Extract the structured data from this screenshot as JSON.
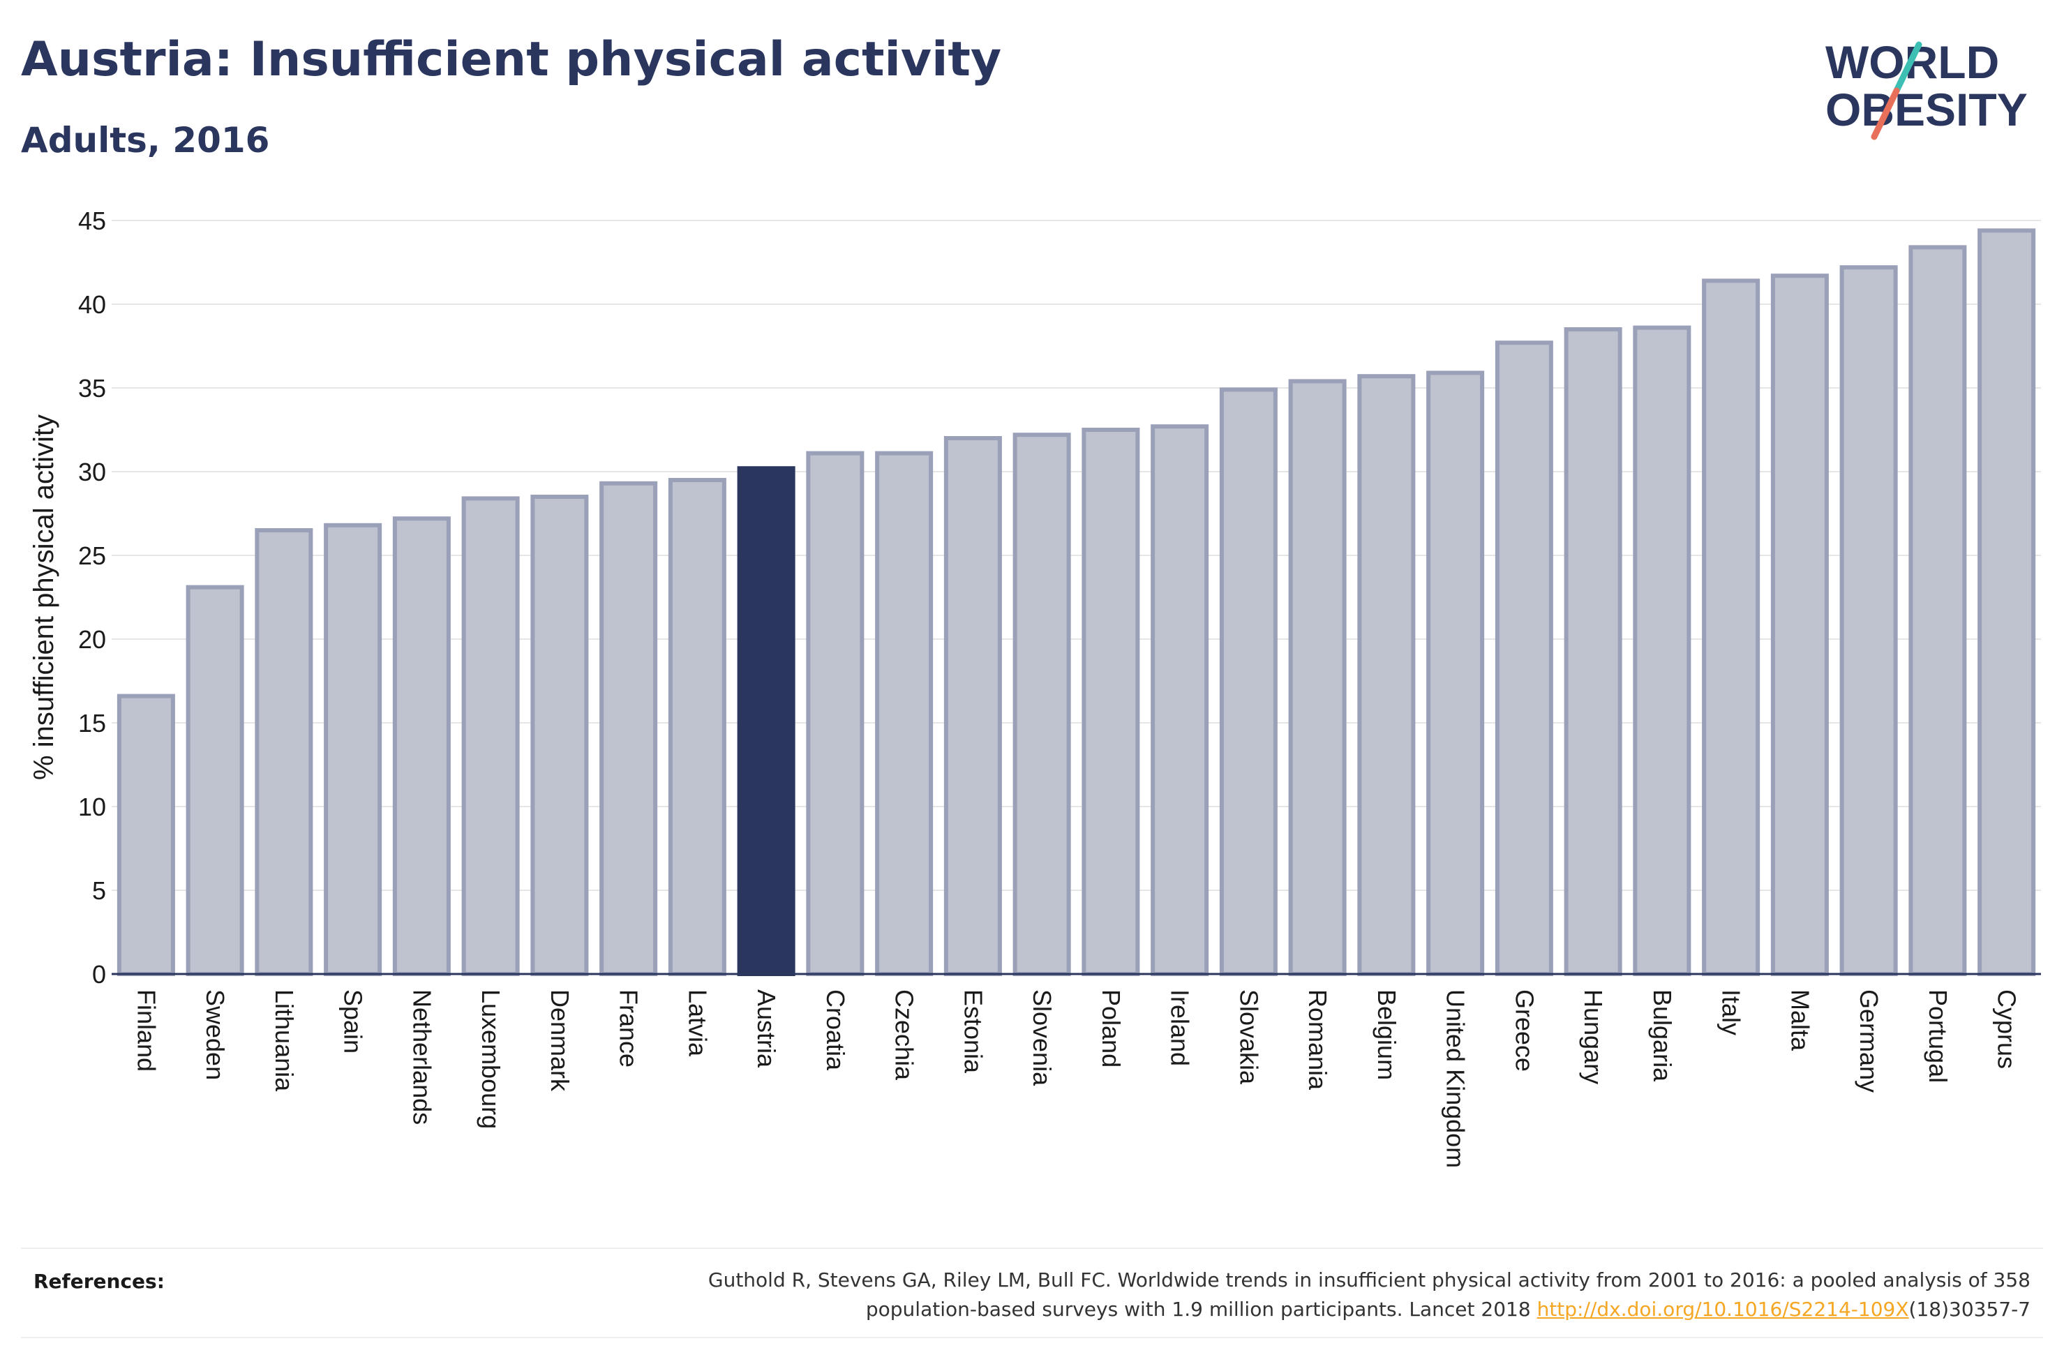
{
  "header": {
    "title": "Austria: Insufficient physical activity",
    "subtitle": "Adults, 2016"
  },
  "logo": {
    "line1": "WORLD",
    "line2": "OBESITY",
    "accent_teal": "#3dbfb4",
    "accent_coral": "#e8705a",
    "text_color": "#2b365e"
  },
  "colors": {
    "highlight": "#2b365e",
    "bar_fill": "#bfc2cf",
    "bar_stroke": "#9aa0b8"
  },
  "chart_data": {
    "type": "bar",
    "ylabel": "% insufficient physical activity",
    "ylim": [
      0,
      45
    ],
    "yticks": [
      0,
      5,
      10,
      15,
      20,
      25,
      30,
      35,
      40,
      45
    ],
    "grid": true,
    "highlight": "Austria",
    "categories": [
      "Finland",
      "Sweden",
      "Lithuania",
      "Spain",
      "Netherlands",
      "Luxembourg",
      "Denmark",
      "France",
      "Latvia",
      "Austria",
      "Croatia",
      "Czechia",
      "Estonia",
      "Slovenia",
      "Poland",
      "Ireland",
      "Slovakia",
      "Romania",
      "Belgium",
      "United Kingdom",
      "Greece",
      "Hungary",
      "Bulgaria",
      "Italy",
      "Malta",
      "Germany",
      "Portugal",
      "Cyprus"
    ],
    "values": [
      16.6,
      23.1,
      26.5,
      26.8,
      27.2,
      28.4,
      28.5,
      29.3,
      29.5,
      30.2,
      31.1,
      31.1,
      32.0,
      32.2,
      32.5,
      32.7,
      34.9,
      35.4,
      35.7,
      35.9,
      37.7,
      38.5,
      38.6,
      41.4,
      41.7,
      42.2,
      43.4,
      44.4
    ]
  },
  "references": {
    "label": "References:",
    "text_line1": "Guthold R, Stevens GA, Riley LM, Bull FC. Worldwide trends in insufficient physical activity from 2001 to 2016: a pooled analysis of 358",
    "text_line2_prefix": "population-based surveys with 1.9 million participants. Lancet 2018 ",
    "link": "http://dx.doi.org/10.1016/S2214-109X",
    "text_line2_suffix": "(18)30357-7"
  }
}
